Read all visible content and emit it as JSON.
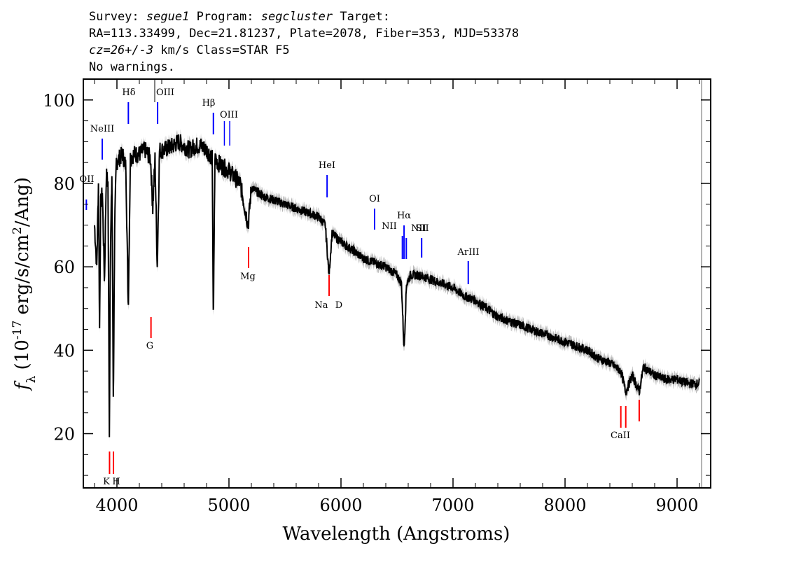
{
  "header": {
    "survey_label": "Survey:",
    "survey": "segue1",
    "program_label": "Program:",
    "program": "segcluster",
    "target_label": "Target:",
    "line2": "RA=113.33499, Dec=21.81237, Plate=2078, Fiber=353, MJD=53378",
    "redshift": "cz=26+/-3",
    "redshift_rest": " km/s Class=STAR F5",
    "warnings": "No warnings."
  },
  "chart_data": {
    "type": "line",
    "xlabel": "Wavelength (Angstroms)",
    "ylabel": "f_λ (10^-17 erg/s/cm^2/Ang)",
    "xlim": [
      3700,
      9300
    ],
    "ylim": [
      7,
      105
    ],
    "x_ticks": [
      4000,
      5000,
      6000,
      7000,
      8000,
      9000
    ],
    "y_ticks": [
      20,
      40,
      60,
      80,
      100
    ],
    "series": [
      {
        "color": "#000000",
        "error_color": "#b4b4b4",
        "x": [
          3800,
          3820,
          3835,
          3845,
          3855,
          3870,
          3889,
          3905,
          3920,
          3933,
          3940,
          3955,
          3968,
          3980,
          3995,
          4020,
          4050,
          4080,
          4101,
          4120,
          4150,
          4200,
          4250,
          4300,
          4320,
          4340,
          4360,
          4380,
          4420,
          4500,
          4550,
          4600,
          4650,
          4700,
          4750,
          4800,
          4830,
          4850,
          4861,
          4875,
          4900,
          4950,
          5000,
          5100,
          5172,
          5200,
          5300,
          5400,
          5500,
          5600,
          5700,
          5800,
          5860,
          5893,
          5920,
          6000,
          6100,
          6200,
          6300,
          6400,
          6500,
          6540,
          6563,
          6585,
          6620,
          6700,
          6800,
          6900,
          7000,
          7100,
          7200,
          7300,
          7400,
          7500,
          7600,
          7700,
          7800,
          7900,
          8000,
          8100,
          8200,
          8300,
          8400,
          8498,
          8542,
          8600,
          8662,
          8700,
          8800,
          8900,
          9000,
          9100,
          9200
        ],
        "y": [
          70,
          60,
          80,
          45,
          75,
          78,
          56,
          82,
          80,
          18,
          60,
          82,
          27,
          70,
          85,
          86,
          87,
          84,
          50,
          86,
          87,
          87,
          88,
          86,
          74,
          86,
          60,
          88,
          88,
          89,
          90,
          89,
          88,
          89,
          89,
          88,
          87,
          86,
          47,
          86,
          85,
          84,
          83,
          80,
          70,
          79,
          77,
          76,
          75,
          74,
          73,
          72,
          70,
          58,
          68,
          66,
          64,
          62,
          61,
          60,
          58,
          56,
          40,
          56,
          58,
          58,
          57,
          56,
          55,
          53,
          52,
          50,
          48,
          47,
          46,
          45,
          44,
          43,
          42,
          41,
          40,
          38,
          37,
          35,
          30,
          34,
          30,
          36,
          34,
          33,
          33,
          32,
          32
        ]
      }
    ],
    "annotations": [
      {
        "label": "OII",
        "wavelength": 3727,
        "color": "blue",
        "side": "top"
      },
      {
        "label": "NeIII",
        "wavelength": 3869,
        "color": "blue",
        "side": "top"
      },
      {
        "label": "Hδ",
        "wavelength": 4102,
        "color": "blue",
        "side": "top"
      },
      {
        "label": "OIII",
        "wavelength": 4363,
        "color": "blue",
        "side": "top"
      },
      {
        "label": "Hβ",
        "wavelength": 4861,
        "color": "blue",
        "side": "top"
      },
      {
        "label": "OIII",
        "wavelength": 4985,
        "color": "blue",
        "side": "top"
      },
      {
        "label": "HeI",
        "wavelength": 5876,
        "color": "blue",
        "side": "top"
      },
      {
        "label": "OI",
        "wavelength": 6300,
        "color": "blue",
        "side": "top"
      },
      {
        "label": "NII",
        "wavelength": 6548,
        "color": "blue",
        "side": "top"
      },
      {
        "label": "Hα",
        "wavelength": 6563,
        "color": "blue",
        "side": "top"
      },
      {
        "label": "NII",
        "wavelength": 6583,
        "color": "blue",
        "side": "top"
      },
      {
        "label": "SII",
        "wavelength": 6720,
        "color": "blue",
        "side": "top"
      },
      {
        "label": "ArIII",
        "wavelength": 7136,
        "color": "blue",
        "side": "top"
      },
      {
        "label": "K",
        "wavelength": 3934,
        "color": "red",
        "side": "bottom"
      },
      {
        "label": "H",
        "wavelength": 3969,
        "color": "red",
        "side": "bottom"
      },
      {
        "label": "G",
        "wavelength": 4304,
        "color": "red",
        "side": "bottom"
      },
      {
        "label": "Mg",
        "wavelength": 5175,
        "color": "red",
        "side": "bottom"
      },
      {
        "label": "Na",
        "wavelength": 5894,
        "color": "red",
        "side": "bottom"
      },
      {
        "label": "D",
        "wavelength": 5894,
        "color": "red",
        "side": "bottom"
      },
      {
        "label": "CaII",
        "wavelength": 8542,
        "color": "red",
        "side": "bottom"
      }
    ]
  }
}
